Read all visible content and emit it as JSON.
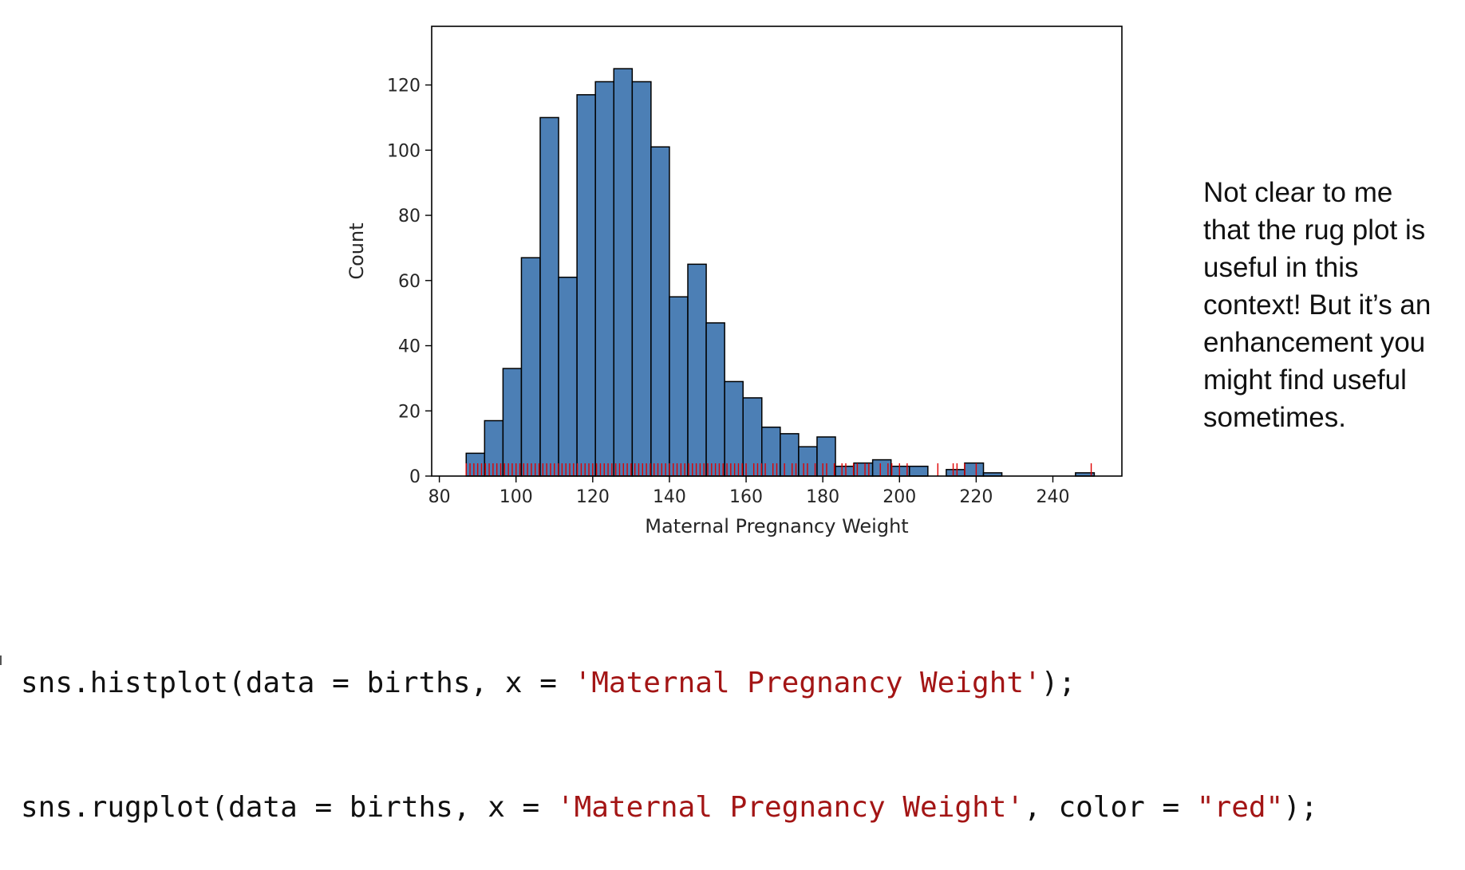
{
  "chart_data": {
    "type": "bar",
    "subtype": "histogram-with-rug",
    "title": "",
    "xlabel": "Maternal Pregnancy Weight",
    "ylabel": "Count",
    "xlim": [
      78,
      258
    ],
    "ylim": [
      0,
      138
    ],
    "xticks": [
      80,
      100,
      120,
      140,
      160,
      180,
      200,
      220,
      240
    ],
    "yticks": [
      0,
      20,
      40,
      60,
      80,
      100,
      120
    ],
    "bar_color": "#4c7fb5",
    "bar_edge_color": "#000000",
    "rug_color": "#e00000",
    "bins": [
      {
        "x0": 87.0,
        "x1": 91.8,
        "count": 7
      },
      {
        "x0": 91.8,
        "x1": 96.6,
        "count": 17
      },
      {
        "x0": 96.6,
        "x1": 101.4,
        "count": 33
      },
      {
        "x0": 101.4,
        "x1": 106.3,
        "count": 67
      },
      {
        "x0": 106.3,
        "x1": 111.1,
        "count": 110
      },
      {
        "x0": 111.1,
        "x1": 115.9,
        "count": 61
      },
      {
        "x0": 115.9,
        "x1": 120.7,
        "count": 117
      },
      {
        "x0": 120.7,
        "x1": 125.5,
        "count": 121
      },
      {
        "x0": 125.5,
        "x1": 130.3,
        "count": 125
      },
      {
        "x0": 130.3,
        "x1": 135.2,
        "count": 121
      },
      {
        "x0": 135.2,
        "x1": 140.0,
        "count": 101
      },
      {
        "x0": 140.0,
        "x1": 144.8,
        "count": 55
      },
      {
        "x0": 144.8,
        "x1": 149.6,
        "count": 65
      },
      {
        "x0": 149.6,
        "x1": 154.4,
        "count": 47
      },
      {
        "x0": 154.4,
        "x1": 159.2,
        "count": 29
      },
      {
        "x0": 159.2,
        "x1": 164.1,
        "count": 24
      },
      {
        "x0": 164.1,
        "x1": 168.9,
        "count": 15
      },
      {
        "x0": 168.9,
        "x1": 173.7,
        "count": 13
      },
      {
        "x0": 173.7,
        "x1": 178.5,
        "count": 9
      },
      {
        "x0": 178.5,
        "x1": 183.3,
        "count": 12
      },
      {
        "x0": 183.3,
        "x1": 188.1,
        "count": 3
      },
      {
        "x0": 188.1,
        "x1": 193.0,
        "count": 4
      },
      {
        "x0": 193.0,
        "x1": 197.8,
        "count": 5
      },
      {
        "x0": 197.8,
        "x1": 202.6,
        "count": 3
      },
      {
        "x0": 202.6,
        "x1": 207.4,
        "count": 3
      },
      {
        "x0": 207.4,
        "x1": 212.2,
        "count": 0
      },
      {
        "x0": 212.2,
        "x1": 217.0,
        "count": 2
      },
      {
        "x0": 217.0,
        "x1": 221.9,
        "count": 4
      },
      {
        "x0": 221.9,
        "x1": 226.7,
        "count": 1
      },
      {
        "x0": 226.7,
        "x1": 231.5,
        "count": 0
      },
      {
        "x0": 231.5,
        "x1": 236.3,
        "count": 0
      },
      {
        "x0": 236.3,
        "x1": 241.1,
        "count": 0
      },
      {
        "x0": 241.1,
        "x1": 245.9,
        "count": 0
      },
      {
        "x0": 245.9,
        "x1": 250.8,
        "count": 1
      }
    ],
    "rug_values": [
      87,
      88,
      89,
      90,
      91,
      92,
      93,
      94,
      95,
      96,
      97,
      98,
      99,
      100,
      101,
      102,
      103,
      104,
      105,
      106,
      107,
      108,
      109,
      110,
      111,
      112,
      113,
      114,
      115,
      116,
      117,
      118,
      119,
      120,
      121,
      122,
      123,
      124,
      125,
      126,
      127,
      128,
      129,
      130,
      131,
      132,
      133,
      134,
      135,
      136,
      137,
      138,
      139,
      140,
      141,
      142,
      143,
      144,
      145,
      146,
      147,
      148,
      149,
      150,
      151,
      152,
      153,
      154,
      155,
      156,
      157,
      158,
      159,
      160,
      162,
      163,
      164,
      165,
      167,
      168,
      170,
      172,
      173,
      175,
      176,
      178,
      180,
      181,
      183,
      185,
      186,
      188,
      189,
      191,
      192,
      195,
      197,
      198,
      200,
      202,
      210,
      214,
      215,
      217,
      220,
      250
    ]
  },
  "annotation": {
    "lines": [
      "Not clear to me",
      "that the rug plot is",
      "useful in this",
      "context! But it’s an",
      "enhancement you",
      "might find useful",
      "sometimes."
    ]
  },
  "code": {
    "line1": {
      "pre": "sns.histplot(data = births, x = ",
      "str": "'Maternal Pregnancy Weight'",
      "post": ");"
    },
    "line2": {
      "pre": "sns.rugplot(data = births, x = ",
      "str1": "'Maternal Pregnancy Weight'",
      "mid": ", color = ",
      "str2": "\"red\"",
      "post": ");"
    }
  }
}
